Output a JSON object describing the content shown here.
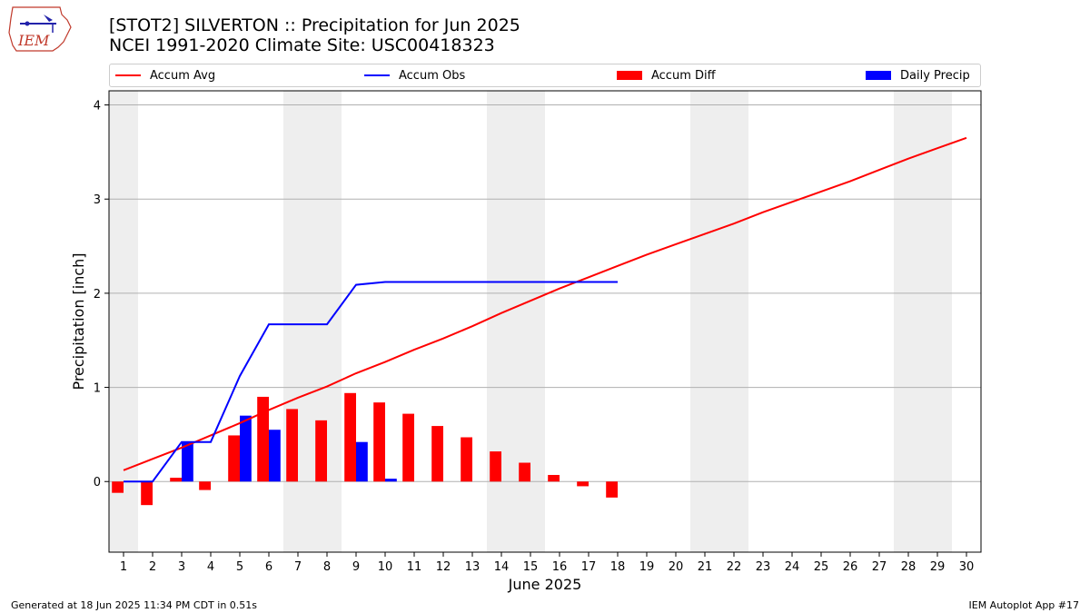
{
  "header": {
    "logo_text": "IEM",
    "title_line1": "[STOT2] SILVERTON :: Precipitation for Jun 2025",
    "title_line2": "NCEI 1991-2020 Climate Site: USC00418323"
  },
  "colors": {
    "avg": "#ff0000",
    "obs": "#0000ff",
    "diff": "#ff0000",
    "daily": "#0000ff",
    "weekend": "#eeeeee",
    "grid": "#b0b0b0"
  },
  "footer": {
    "left": "Generated at 18 Jun 2025 11:34 PM CDT in 0.51s",
    "right": "IEM Autoplot App #17"
  },
  "chart_data": {
    "type": "bar",
    "xlabel": "June 2025",
    "ylabel": "Precipitation [inch]",
    "xlim": [
      0.5,
      30.5
    ],
    "ylim": [
      -0.75,
      4.15
    ],
    "yticks": [
      0,
      1,
      2,
      3,
      4
    ],
    "grid": "horizontal",
    "legend_placement": "top",
    "weekend_days": [
      1,
      7,
      8,
      14,
      15,
      21,
      22,
      28,
      29
    ],
    "days": [
      1,
      2,
      3,
      4,
      5,
      6,
      7,
      8,
      9,
      10,
      11,
      12,
      13,
      14,
      15,
      16,
      17,
      18,
      19,
      20,
      21,
      22,
      23,
      24,
      25,
      26,
      27,
      28,
      29,
      30
    ],
    "series": [
      {
        "name": "Accum Avg",
        "kind": "line",
        "values": [
          0.12,
          0.24,
          0.36,
          0.49,
          0.62,
          0.76,
          0.89,
          1.01,
          1.15,
          1.27,
          1.4,
          1.52,
          1.65,
          1.79,
          1.92,
          2.05,
          2.17,
          2.29,
          2.41,
          2.52,
          2.63,
          2.74,
          2.86,
          2.97,
          3.08,
          3.19,
          3.31,
          3.43,
          3.54,
          3.65
        ]
      },
      {
        "name": "Accum Obs",
        "kind": "line",
        "values": [
          0.0,
          0.0,
          0.42,
          0.42,
          1.12,
          1.67,
          1.67,
          1.67,
          2.09,
          2.12,
          2.12,
          2.12,
          2.12,
          2.12,
          2.12,
          2.12,
          2.12,
          2.12
        ]
      },
      {
        "name": "Accum Diff",
        "kind": "bar",
        "values": [
          -0.12,
          -0.25,
          0.04,
          -0.09,
          0.49,
          0.9,
          0.77,
          0.65,
          0.94,
          0.84,
          0.72,
          0.59,
          0.47,
          0.32,
          0.2,
          0.07,
          -0.05,
          -0.17
        ]
      },
      {
        "name": "Daily Precip",
        "kind": "bar",
        "values": [
          0.0,
          0.0,
          0.42,
          0.0,
          0.7,
          0.55,
          0.0,
          0.0,
          0.42,
          0.03,
          0,
          0,
          0,
          0,
          0,
          0,
          0,
          0
        ]
      }
    ]
  }
}
